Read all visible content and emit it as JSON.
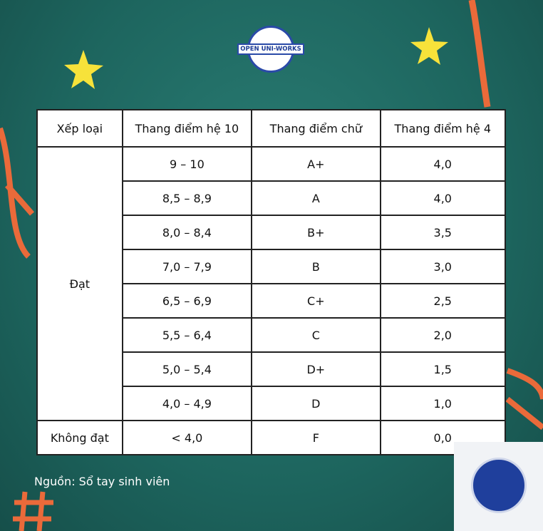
{
  "logo": {
    "name": "OPEN UNI-WORKS"
  },
  "table": {
    "header": [
      "Xếp loại",
      "Thang điểm hệ 10",
      "Thang điểm chữ",
      "Thang điểm hệ 4"
    ],
    "groups": [
      {
        "label": "Đạt",
        "rows": [
          [
            "9 – 10",
            "A+",
            "4,0"
          ],
          [
            "8,5 – 8,9",
            "A",
            "4,0"
          ],
          [
            "8,0 – 8,4",
            "B+",
            "3,5"
          ],
          [
            "7,0 – 7,9",
            "B",
            "3,0"
          ],
          [
            "6,5 – 6,9",
            "C+",
            "2,5"
          ],
          [
            "5,5 – 6,4",
            "C",
            "2,0"
          ],
          [
            "5,0 – 5,4",
            "D+",
            "1,5"
          ],
          [
            "4,0 – 4,9",
            "D",
            "1,0"
          ]
        ]
      },
      {
        "label": "Không đạt",
        "rows": [
          [
            "< 4,0",
            "F",
            "0,0"
          ]
        ]
      }
    ]
  },
  "source": "Nguồn: Sổ tay sinh viên"
}
